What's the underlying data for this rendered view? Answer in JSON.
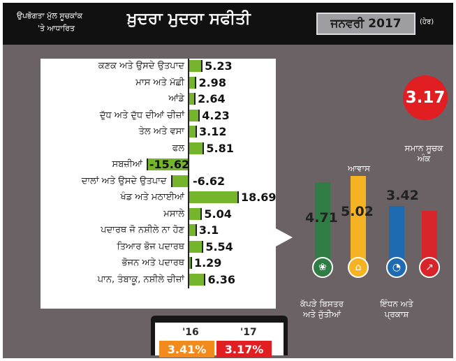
{
  "header": {
    "subtitle_line1": "ਉਪਭੋਗਤਾ ਮੁੱਲ ਸੂਚਕਾਂਕ",
    "subtitle_line2": "'ਤੇ ਆਧਾਰਿਤ",
    "title": "ਖ਼ੁਦਰਾ ਮੁਦਰਾ ਸਫੀਤੀ",
    "date": "ਜਨਵਰੀ 2017",
    "unit_note": "(ਹੇਰ)"
  },
  "colors": {
    "food_bar": "#74b52c",
    "clothing_bar": "#2f7d45",
    "housing_bar": "#f5b324",
    "fuel_bar": "#1f6bb2",
    "general_bar": "#d9242a",
    "highlight": "#e11e22",
    "year16": "#f28a1c",
    "year17": "#e11e22"
  },
  "chart_data": [
    {
      "type": "bar",
      "orientation": "horizontal",
      "categories": [
        "ਕਣਕ ਅਤੇ ਉਸਦੇ ਉਤਪਾਦ",
        "ਮਾਸ ਅਤੇ ਮੱਛੀ",
        "ਆਂਡੇ",
        "ਦੁੱਧ ਅਤੇ ਦੁੱਧ ਦੀਆਂ ਚੀਜ਼ਾਂ",
        "ਤੇਲ ਅਤੇ ਵਸਾ",
        "ਫਲ",
        "ਸਬਜ਼ੀਆਂ",
        "ਦਾਲਾਂ ਅਤੇ ਉਸਦੇ ਉਤਪਾਦ",
        "ਖੰਡ ਅਤੇ ਮਠਾਈਆਂ",
        "ਮਸਾਲੇ",
        "ਪਦਾਰਥ ਜੋ ਨਸ਼ੀਲੇ ਨਾ ਹੋਣ",
        "ਤਿਆਰ ਭੋਜ ਪਦਾਰਥ",
        "ਭੋਜਨ ਅਤੇ ਪਦਾਰਥ",
        "ਪਾਨ, ਤੰਬਾਕੂ, ਨਸ਼ੀਲੇ ਚੀਜ਼ਾਂ"
      ],
      "values": [
        5.23,
        2.98,
        2.64,
        4.23,
        3.12,
        5.81,
        -15.62,
        -6.62,
        18.69,
        5.04,
        3.1,
        5.54,
        1.29,
        6.36
      ],
      "value_labels": [
        "5.23",
        "2.98",
        "2.64",
        "4.23",
        "3.12",
        "5.81",
        "-15.62",
        "-6.62",
        "18.69",
        "5.04",
        "3.1",
        "5.54",
        "1.29",
        "6.36"
      ],
      "xlim": [
        -16,
        19
      ]
    },
    {
      "type": "bar",
      "orientation": "vertical",
      "categories": [
        "ਕੱਪੜੇ ਬਿਸਤਰ ਅਤੇ ਜੁੱਤੀਆਂ",
        "ਆਵਾਸ",
        "ਇੰਧਨ ਅਤੇ ਪ੍ਰਕਾਸ਼",
        "ਸਮਾਨ ਸੂਚਕ ਅੰਕ"
      ],
      "values": [
        4.71,
        5.02,
        3.42,
        3.17
      ],
      "value_labels": [
        "4.71",
        "5.02",
        "3.42",
        "3.17"
      ],
      "ylim": [
        0,
        5.5
      ]
    }
  ],
  "bottom": {
    "year16_label": "'16",
    "year17_label": "'17",
    "year16_value": "3.41%",
    "year17_value": "3.17%"
  }
}
